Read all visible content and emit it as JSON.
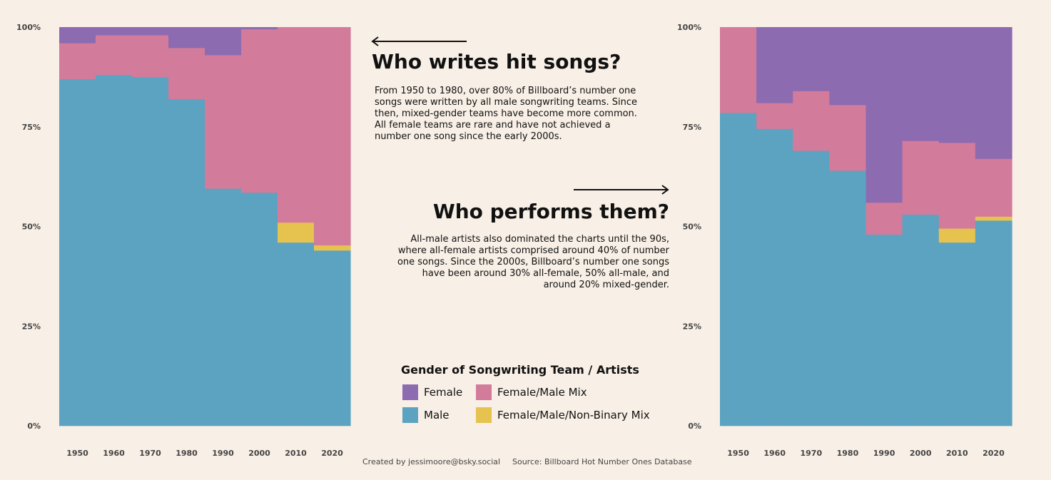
{
  "chart_data": [
    {
      "type": "area",
      "title": "Who writes hit songs?",
      "x": [
        1950,
        1960,
        1970,
        1980,
        1990,
        2000,
        2010,
        2020
      ],
      "x_tick_labels": [
        "1950",
        "1960",
        "1970",
        "1980",
        "1990",
        "2000",
        "2010",
        "2020"
      ],
      "y_tick_labels": [
        "0%",
        "25%",
        "50%",
        "75%",
        "100%"
      ],
      "ylim": [
        0,
        100
      ],
      "stacked": true,
      "step": true,
      "series": [
        {
          "name": "Male",
          "values": [
            87,
            88,
            87.5,
            82,
            59.5,
            58.5,
            46,
            44
          ]
        },
        {
          "name": "Female/Male/Non-Binary Mix",
          "values": [
            0,
            0,
            0,
            0,
            0,
            0,
            5,
            1.3
          ]
        },
        {
          "name": "Female/Male Mix",
          "values": [
            9,
            10,
            10.5,
            12.8,
            33.5,
            41,
            49,
            54.7
          ]
        },
        {
          "name": "Female",
          "values": [
            4,
            2,
            2,
            5.2,
            7,
            0.5,
            0,
            0
          ]
        }
      ]
    },
    {
      "type": "area",
      "title": "Who performs them?",
      "x": [
        1950,
        1960,
        1970,
        1980,
        1990,
        2000,
        2010,
        2020
      ],
      "x_tick_labels": [
        "1950",
        "1960",
        "1970",
        "1980",
        "1990",
        "2000",
        "2010",
        "2020"
      ],
      "y_tick_labels": [
        "0%",
        "25%",
        "50%",
        "75%",
        "100%"
      ],
      "ylim": [
        0,
        100
      ],
      "stacked": true,
      "step": true,
      "series": [
        {
          "name": "Male",
          "values": [
            78.5,
            74.5,
            69,
            64,
            48,
            53,
            46,
            51.5
          ]
        },
        {
          "name": "Female/Male/Non-Binary Mix",
          "values": [
            0,
            0,
            0,
            0,
            0,
            0,
            3.5,
            1
          ]
        },
        {
          "name": "Female/Male Mix",
          "values": [
            21.5,
            6.5,
            15,
            16.5,
            8,
            18.5,
            21.5,
            14.5
          ]
        },
        {
          "name": "Female",
          "values": [
            0,
            19,
            16,
            19.5,
            44,
            28.5,
            29,
            33
          ]
        }
      ]
    }
  ],
  "colors": {
    "Female": "#8c6bb1",
    "Female/Male Mix": "#d27b9b",
    "Male": "#5ba3c1",
    "Female/Male/Non-Binary Mix": "#e6c24f",
    "background": "#f8efe6"
  },
  "writers": {
    "heading": "Who writes hit songs?",
    "body": "From 1950 to 1980, over 80% of Billboard’s number one songs were written by all male songwriting teams. Since then, mixed-gender teams have become more common. All female teams are rare and have not achieved a number one song since the early 2000s."
  },
  "performers": {
    "heading": "Who performs them?",
    "body": "All-male artists also dominated the charts until the 90s, where all-female artists comprised around 40% of number one songs. Since the 2000s, Billboard’s number one songs have been around 30% all-female, 50% all-male, and around 20% mixed-gender."
  },
  "legend": {
    "title": "Gender of Songwriting Team / Artists",
    "items": [
      {
        "label": "Female",
        "color": "#8c6bb1"
      },
      {
        "label": "Female/Male Mix",
        "color": "#d27b9b"
      },
      {
        "label": "Male",
        "color": "#5ba3c1"
      },
      {
        "label": "Female/Male/Non-Binary Mix",
        "color": "#e6c24f"
      }
    ]
  },
  "footer": {
    "credit": "Created by jessimoore@bsky.social",
    "source": "Source: Billboard Hot Number Ones Database"
  }
}
